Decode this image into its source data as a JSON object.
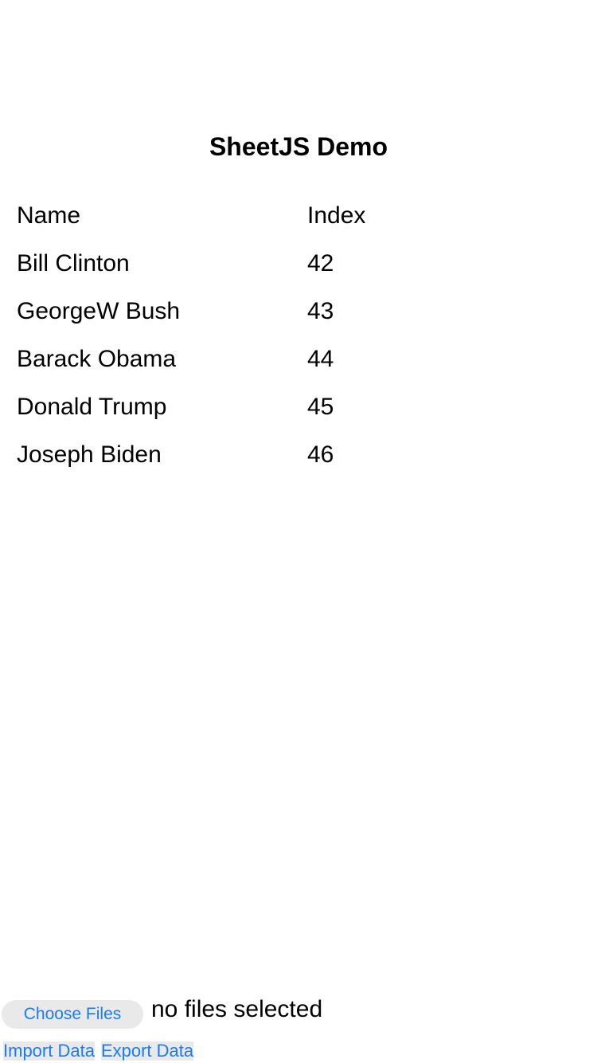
{
  "title": "SheetJS Demo",
  "table": {
    "headers": [
      "Name",
      "Index"
    ],
    "rows": [
      [
        "Bill Clinton",
        "42"
      ],
      [
        "GeorgeW Bush",
        "43"
      ],
      [
        "Barack Obama",
        "44"
      ],
      [
        "Donald Trump",
        "45"
      ],
      [
        "Joseph Biden",
        "46"
      ]
    ]
  },
  "file_input": {
    "button_label": "Choose Files",
    "status": "no files selected"
  },
  "buttons": {
    "import": "Import Data",
    "export": "Export Data"
  },
  "colors": {
    "accent": "#1a7cf0",
    "button_bg": "#e9e9e9"
  }
}
